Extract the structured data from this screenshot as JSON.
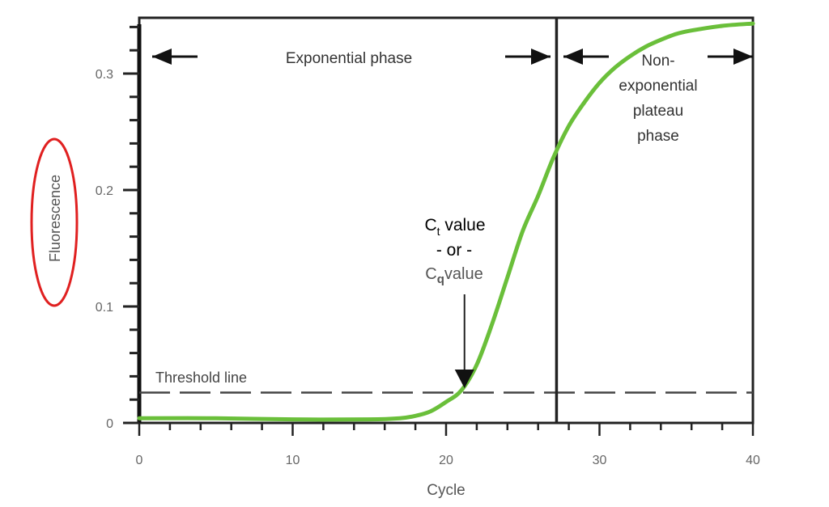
{
  "chart_data": {
    "type": "line",
    "xlabel": "Cycle",
    "ylabel": "Fluorescence",
    "xlim": [
      0,
      40
    ],
    "ylim": [
      0,
      0.345
    ],
    "x_ticks": [
      "0",
      "10",
      "20",
      "30",
      "40"
    ],
    "y_ticks": [
      "0",
      "0.1",
      "0.2",
      "0.3"
    ],
    "grid": false,
    "series": [
      {
        "color": "#6abf3a",
        "x": [
          0,
          5,
          10,
          15,
          17,
          18,
          19,
          20,
          21,
          22,
          23,
          24,
          25,
          26,
          27,
          28,
          29,
          30,
          31,
          32,
          33,
          34,
          35,
          36,
          38,
          40
        ],
        "y": [
          0.004,
          0.004,
          0.003,
          0.003,
          0.004,
          0.006,
          0.01,
          0.018,
          0.028,
          0.05,
          0.085,
          0.125,
          0.165,
          0.195,
          0.228,
          0.255,
          0.275,
          0.292,
          0.305,
          0.315,
          0.323,
          0.329,
          0.334,
          0.337,
          0.341,
          0.343
        ]
      }
    ],
    "threshold": {
      "label": "Threshold line",
      "y": 0.026
    },
    "phase_boundary_cycle": 27.2,
    "annotations": {
      "exponential": "Exponential phase",
      "plateau": [
        "Non-",
        "exponential",
        "plateau",
        "phase"
      ],
      "ct_main": "C",
      "ct_sub": "t",
      "ct_suffix": " value",
      "or": "- or -",
      "cq_main": "C",
      "cq_sub": "q",
      "cq_suffix": "value",
      "ct_cycle": 21.2
    },
    "highlight": {
      "target": "ylabel",
      "color": "#e02020"
    }
  }
}
